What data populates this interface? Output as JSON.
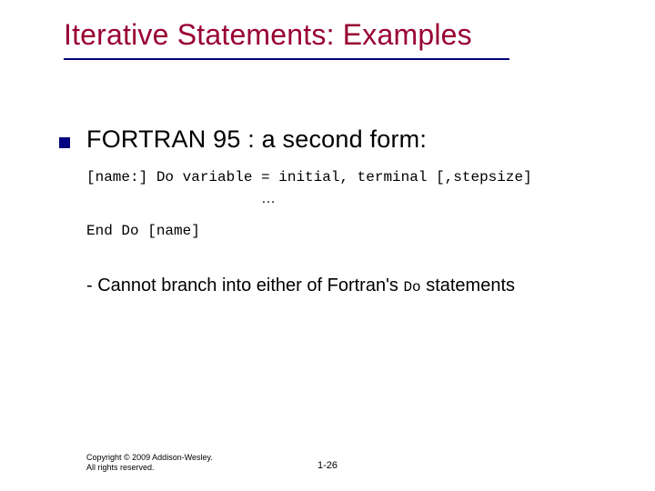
{
  "title": "Iterative Statements: Examples",
  "heading": "FORTRAN 95 : a second form:",
  "code": {
    "line1": "[name:] Do variable = initial, terminal [,stepsize]",
    "ellipsis": "…",
    "line2": "End Do [name]"
  },
  "note": {
    "prefix": "- Cannot branch into either of Fortran's ",
    "mono": "Do",
    "suffix": " statements"
  },
  "footer": {
    "copyright": "Copyright © 2009 Addison-Wesley. All rights reserved.",
    "page": "1-26"
  },
  "colors": {
    "title": "#990033",
    "accent": "#000080",
    "text": "#000000",
    "background": "#ffffff"
  }
}
